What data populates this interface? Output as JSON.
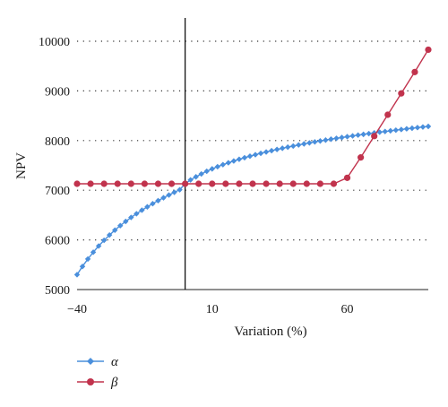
{
  "chart_data": {
    "type": "line",
    "xlabel": "Variation (%)",
    "ylabel": "NPV",
    "xlim": [
      -40,
      90
    ],
    "ylim": [
      5000,
      10500
    ],
    "x_ticks": [
      -40,
      10,
      60
    ],
    "x_tick_labels": [
      "−40",
      "10",
      "60"
    ],
    "y_ticks": [
      5000,
      6000,
      7000,
      8000,
      9000,
      10000
    ],
    "y_tick_labels": [
      "5000",
      "6000",
      "7000",
      "8000",
      "9000",
      "10000"
    ],
    "grid": "horizontal dotted",
    "vertical_reference_line": 0,
    "legend_position": "bottom-left",
    "series": [
      {
        "name": "α",
        "color": "#4a8fdc",
        "marker": "diamond",
        "x": [
          -40,
          -38,
          -36,
          -34,
          -32,
          -30,
          -28,
          -26,
          -24,
          -22,
          -20,
          -18,
          -16,
          -14,
          -12,
          -10,
          -8,
          -6,
          -4,
          -2,
          0,
          2,
          4,
          6,
          8,
          10,
          12,
          14,
          16,
          18,
          20,
          22,
          24,
          26,
          28,
          30,
          32,
          34,
          36,
          38,
          40,
          42,
          44,
          46,
          48,
          50,
          52,
          54,
          56,
          58,
          60,
          62,
          64,
          66,
          68,
          70,
          72,
          74,
          76,
          78,
          80,
          82,
          84,
          86,
          88,
          90
        ],
        "values": [
          5300,
          5465,
          5615,
          5752,
          5877,
          5992,
          6098,
          6196,
          6287,
          6372,
          6452,
          6527,
          6598,
          6665,
          6729,
          6790,
          6848,
          6904,
          6958,
          7010,
          7130,
          7208,
          7270,
          7328,
          7382,
          7430,
          7474,
          7515,
          7553,
          7589,
          7623,
          7655,
          7686,
          7715,
          7743,
          7770,
          7796,
          7821,
          7845,
          7868,
          7890,
          7912,
          7933,
          7953,
          7973,
          7992,
          8010,
          8028,
          8045,
          8062,
          8078,
          8094,
          8110,
          8125,
          8140,
          8155,
          8169,
          8183,
          8197,
          8210,
          8223,
          8236,
          8249,
          8261,
          8273,
          8285
        ]
      },
      {
        "name": "β",
        "color": "#c1334d",
        "marker": "circle",
        "x": [
          -40,
          -35,
          -30,
          -25,
          -20,
          -15,
          -10,
          -5,
          0,
          5,
          10,
          15,
          20,
          25,
          30,
          35,
          40,
          45,
          50,
          55,
          60,
          65,
          70,
          75,
          80,
          85,
          90
        ],
        "values": [
          7130,
          7130,
          7130,
          7130,
          7130,
          7130,
          7130,
          7130,
          7130,
          7130,
          7130,
          7130,
          7130,
          7130,
          7130,
          7130,
          7130,
          7130,
          7130,
          7130,
          7250,
          7660,
          8090,
          8520,
          8950,
          9380,
          9830
        ]
      }
    ]
  }
}
